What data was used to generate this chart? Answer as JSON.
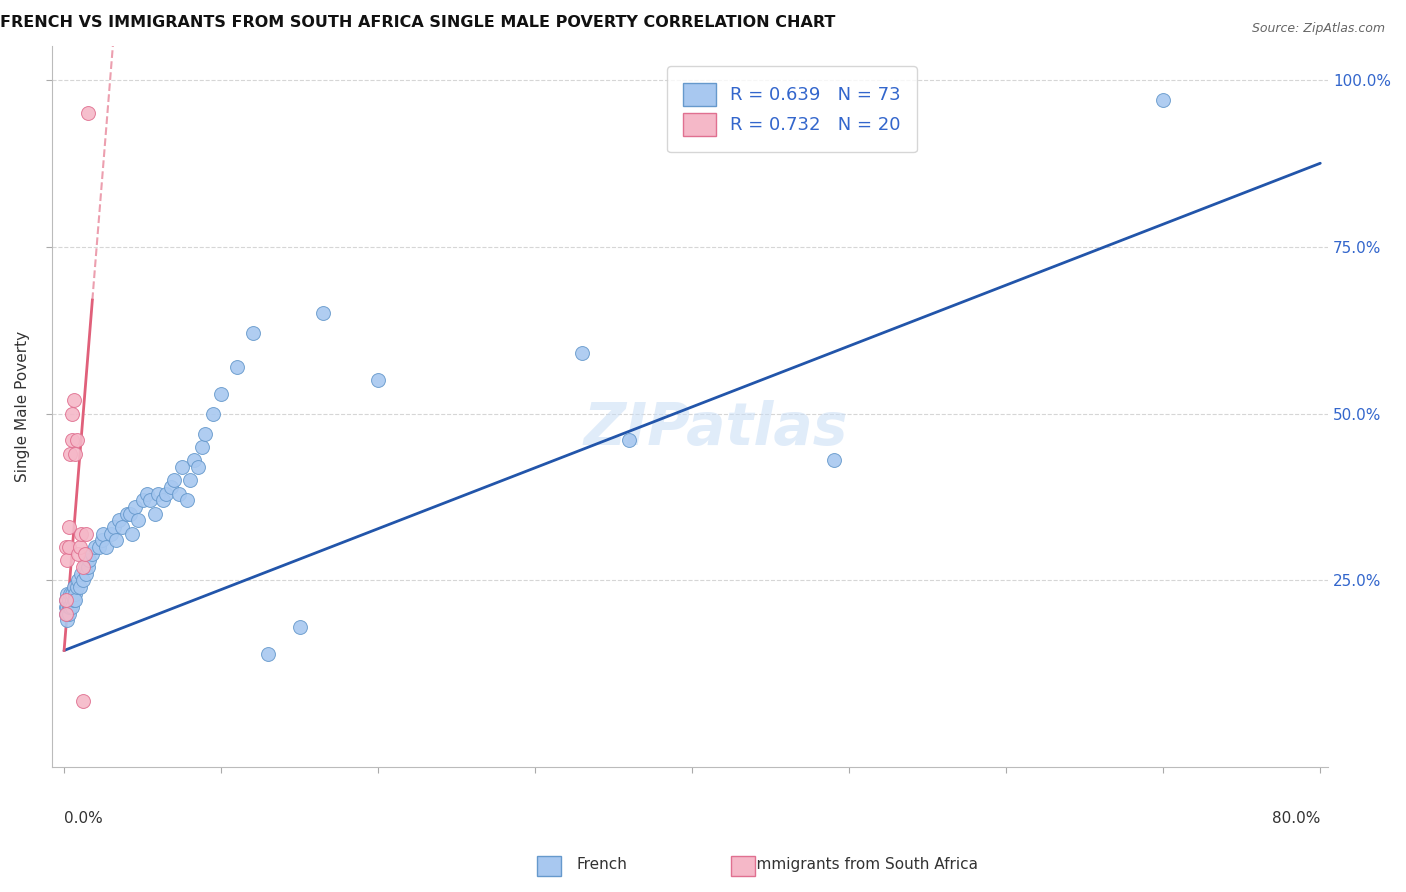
{
  "title": "FRENCH VS IMMIGRANTS FROM SOUTH AFRICA SINGLE MALE POVERTY CORRELATION CHART",
  "source": "Source: ZipAtlas.com",
  "ylabel": "Single Male Poverty",
  "french_R": 0.639,
  "french_N": 73,
  "sa_R": 0.732,
  "sa_N": 20,
  "french_color": "#a8c8f0",
  "french_edge_color": "#6699cc",
  "sa_color": "#f5b8c8",
  "sa_edge_color": "#e07090",
  "french_line_color": "#2255aa",
  "sa_line_color": "#e0607a",
  "watermark": "ZIPatlas",
  "xmin": 0.0,
  "xmax": 0.8,
  "ymin": 0.0,
  "ymax": 1.05,
  "french_line_x0": 0.0,
  "french_line_y0": 0.145,
  "french_line_x1": 0.8,
  "french_line_y1": 0.875,
  "sa_line_x0": 0.0,
  "sa_line_y0": 0.145,
  "sa_line_x1": 0.018,
  "sa_line_y1": 0.67,
  "french_x": [
    0.001,
    0.001,
    0.001,
    0.002,
    0.002,
    0.002,
    0.002,
    0.003,
    0.003,
    0.003,
    0.004,
    0.004,
    0.005,
    0.005,
    0.005,
    0.006,
    0.006,
    0.007,
    0.007,
    0.008,
    0.009,
    0.01,
    0.011,
    0.012,
    0.013,
    0.014,
    0.015,
    0.016,
    0.018,
    0.02,
    0.022,
    0.024,
    0.025,
    0.027,
    0.03,
    0.032,
    0.033,
    0.035,
    0.037,
    0.04,
    0.042,
    0.043,
    0.045,
    0.047,
    0.05,
    0.053,
    0.055,
    0.058,
    0.06,
    0.063,
    0.065,
    0.068,
    0.07,
    0.073,
    0.075,
    0.078,
    0.08,
    0.083,
    0.085,
    0.088,
    0.09,
    0.095,
    0.1,
    0.11,
    0.12,
    0.13,
    0.15,
    0.165,
    0.2,
    0.33,
    0.36,
    0.49,
    0.7
  ],
  "french_y": [
    0.2,
    0.22,
    0.21,
    0.19,
    0.21,
    0.23,
    0.2,
    0.2,
    0.22,
    0.21,
    0.21,
    0.23,
    0.22,
    0.21,
    0.23,
    0.22,
    0.24,
    0.23,
    0.22,
    0.24,
    0.25,
    0.24,
    0.26,
    0.25,
    0.27,
    0.26,
    0.27,
    0.28,
    0.29,
    0.3,
    0.3,
    0.31,
    0.32,
    0.3,
    0.32,
    0.33,
    0.31,
    0.34,
    0.33,
    0.35,
    0.35,
    0.32,
    0.36,
    0.34,
    0.37,
    0.38,
    0.37,
    0.35,
    0.38,
    0.37,
    0.38,
    0.39,
    0.4,
    0.38,
    0.42,
    0.37,
    0.4,
    0.43,
    0.42,
    0.45,
    0.47,
    0.5,
    0.53,
    0.57,
    0.62,
    0.14,
    0.18,
    0.65,
    0.55,
    0.59,
    0.46,
    0.43,
    0.97
  ],
  "sa_x": [
    0.001,
    0.001,
    0.001,
    0.002,
    0.003,
    0.003,
    0.004,
    0.005,
    0.005,
    0.006,
    0.007,
    0.008,
    0.009,
    0.01,
    0.011,
    0.012,
    0.013,
    0.014,
    0.015,
    0.012
  ],
  "sa_y": [
    0.2,
    0.22,
    0.3,
    0.28,
    0.3,
    0.33,
    0.44,
    0.46,
    0.5,
    0.52,
    0.44,
    0.46,
    0.29,
    0.3,
    0.32,
    0.27,
    0.29,
    0.32,
    0.95,
    0.07
  ]
}
